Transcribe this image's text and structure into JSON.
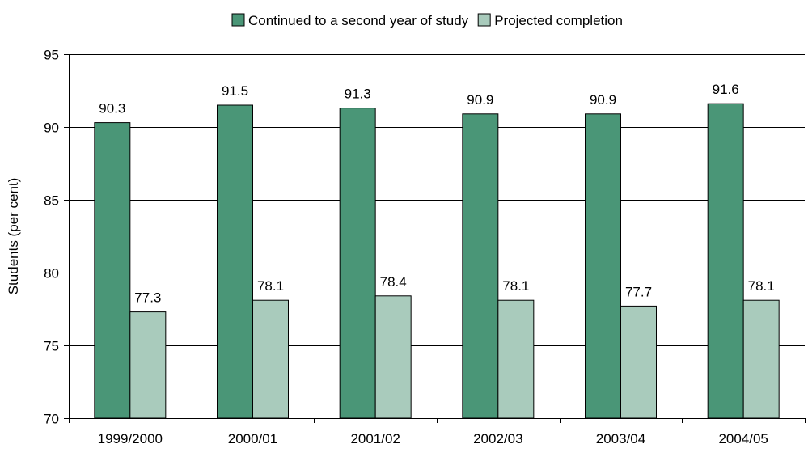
{
  "chart_data": {
    "type": "bar",
    "title": "",
    "xlabel": "",
    "ylabel": "Students (per cent)",
    "ylim": [
      70,
      95
    ],
    "yticks": [
      70,
      75,
      80,
      85,
      90,
      95
    ],
    "grid": true,
    "legend_position": "top",
    "categories": [
      "1999/2000",
      "2000/01",
      "2001/02",
      "2002/03",
      "2003/04",
      "2004/05"
    ],
    "series": [
      {
        "name": "Continued to a second year of study",
        "color": "#4a9677",
        "values": [
          90.3,
          91.5,
          91.3,
          90.9,
          90.9,
          91.6
        ]
      },
      {
        "name": "Projected completion",
        "color": "#a9cbbc",
        "values": [
          77.3,
          78.1,
          78.4,
          78.1,
          77.7,
          78.1
        ]
      }
    ]
  }
}
